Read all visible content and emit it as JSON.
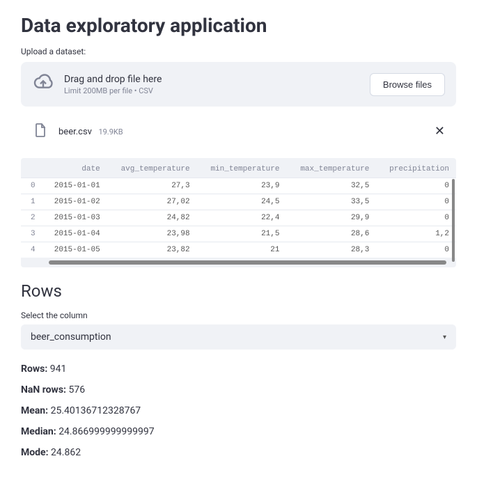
{
  "page_title": "Data exploratory application",
  "upload": {
    "label": "Upload a dataset:",
    "dz_title": "Drag and drop file here",
    "dz_sub": "Limit 200MB per file • CSV",
    "browse_label": "Browse files"
  },
  "file": {
    "name": "beer.csv",
    "size": "19.9KB"
  },
  "table": {
    "columns": [
      "date",
      "avg_temperature",
      "min_temperature",
      "max_temperature",
      "precipitation"
    ],
    "rows": [
      [
        "0",
        "2015-01-01",
        "27,3",
        "23,9",
        "32,5",
        "0"
      ],
      [
        "1",
        "2015-01-02",
        "27,02",
        "24,5",
        "33,5",
        "0"
      ],
      [
        "2",
        "2015-01-03",
        "24,82",
        "22,4",
        "29,9",
        "0"
      ],
      [
        "3",
        "2015-01-04",
        "23,98",
        "21,5",
        "28,6",
        "1,2"
      ],
      [
        "4",
        "2015-01-05",
        "23,82",
        "21",
        "28,3",
        "0"
      ]
    ],
    "col_widths": [
      "30px",
      "100px",
      "120px",
      "120px",
      "120px",
      "110px"
    ],
    "bg_color": "#f0f2f6",
    "text_color": "#555555",
    "header_color": "#808495",
    "border_color": "#e6e9ef",
    "font_family": "monospace",
    "font_size": 11
  },
  "rows_section": {
    "heading": "Rows",
    "select_label": "Select the column",
    "selected": "beer_consumption"
  },
  "stats": {
    "rows_label": "Rows:",
    "rows_value": "941",
    "nan_label": "NaN rows:",
    "nan_value": "576",
    "mean_label": "Mean:",
    "mean_value": "25.40136712328767",
    "median_label": "Median:",
    "median_value": "24.866999999999997",
    "mode_label": "Mode:",
    "mode_value": "24.862"
  },
  "colors": {
    "background": "#ffffff",
    "panel": "#f0f2f6",
    "text": "#31333f",
    "muted": "#808495",
    "scrollbar": "#888888"
  }
}
